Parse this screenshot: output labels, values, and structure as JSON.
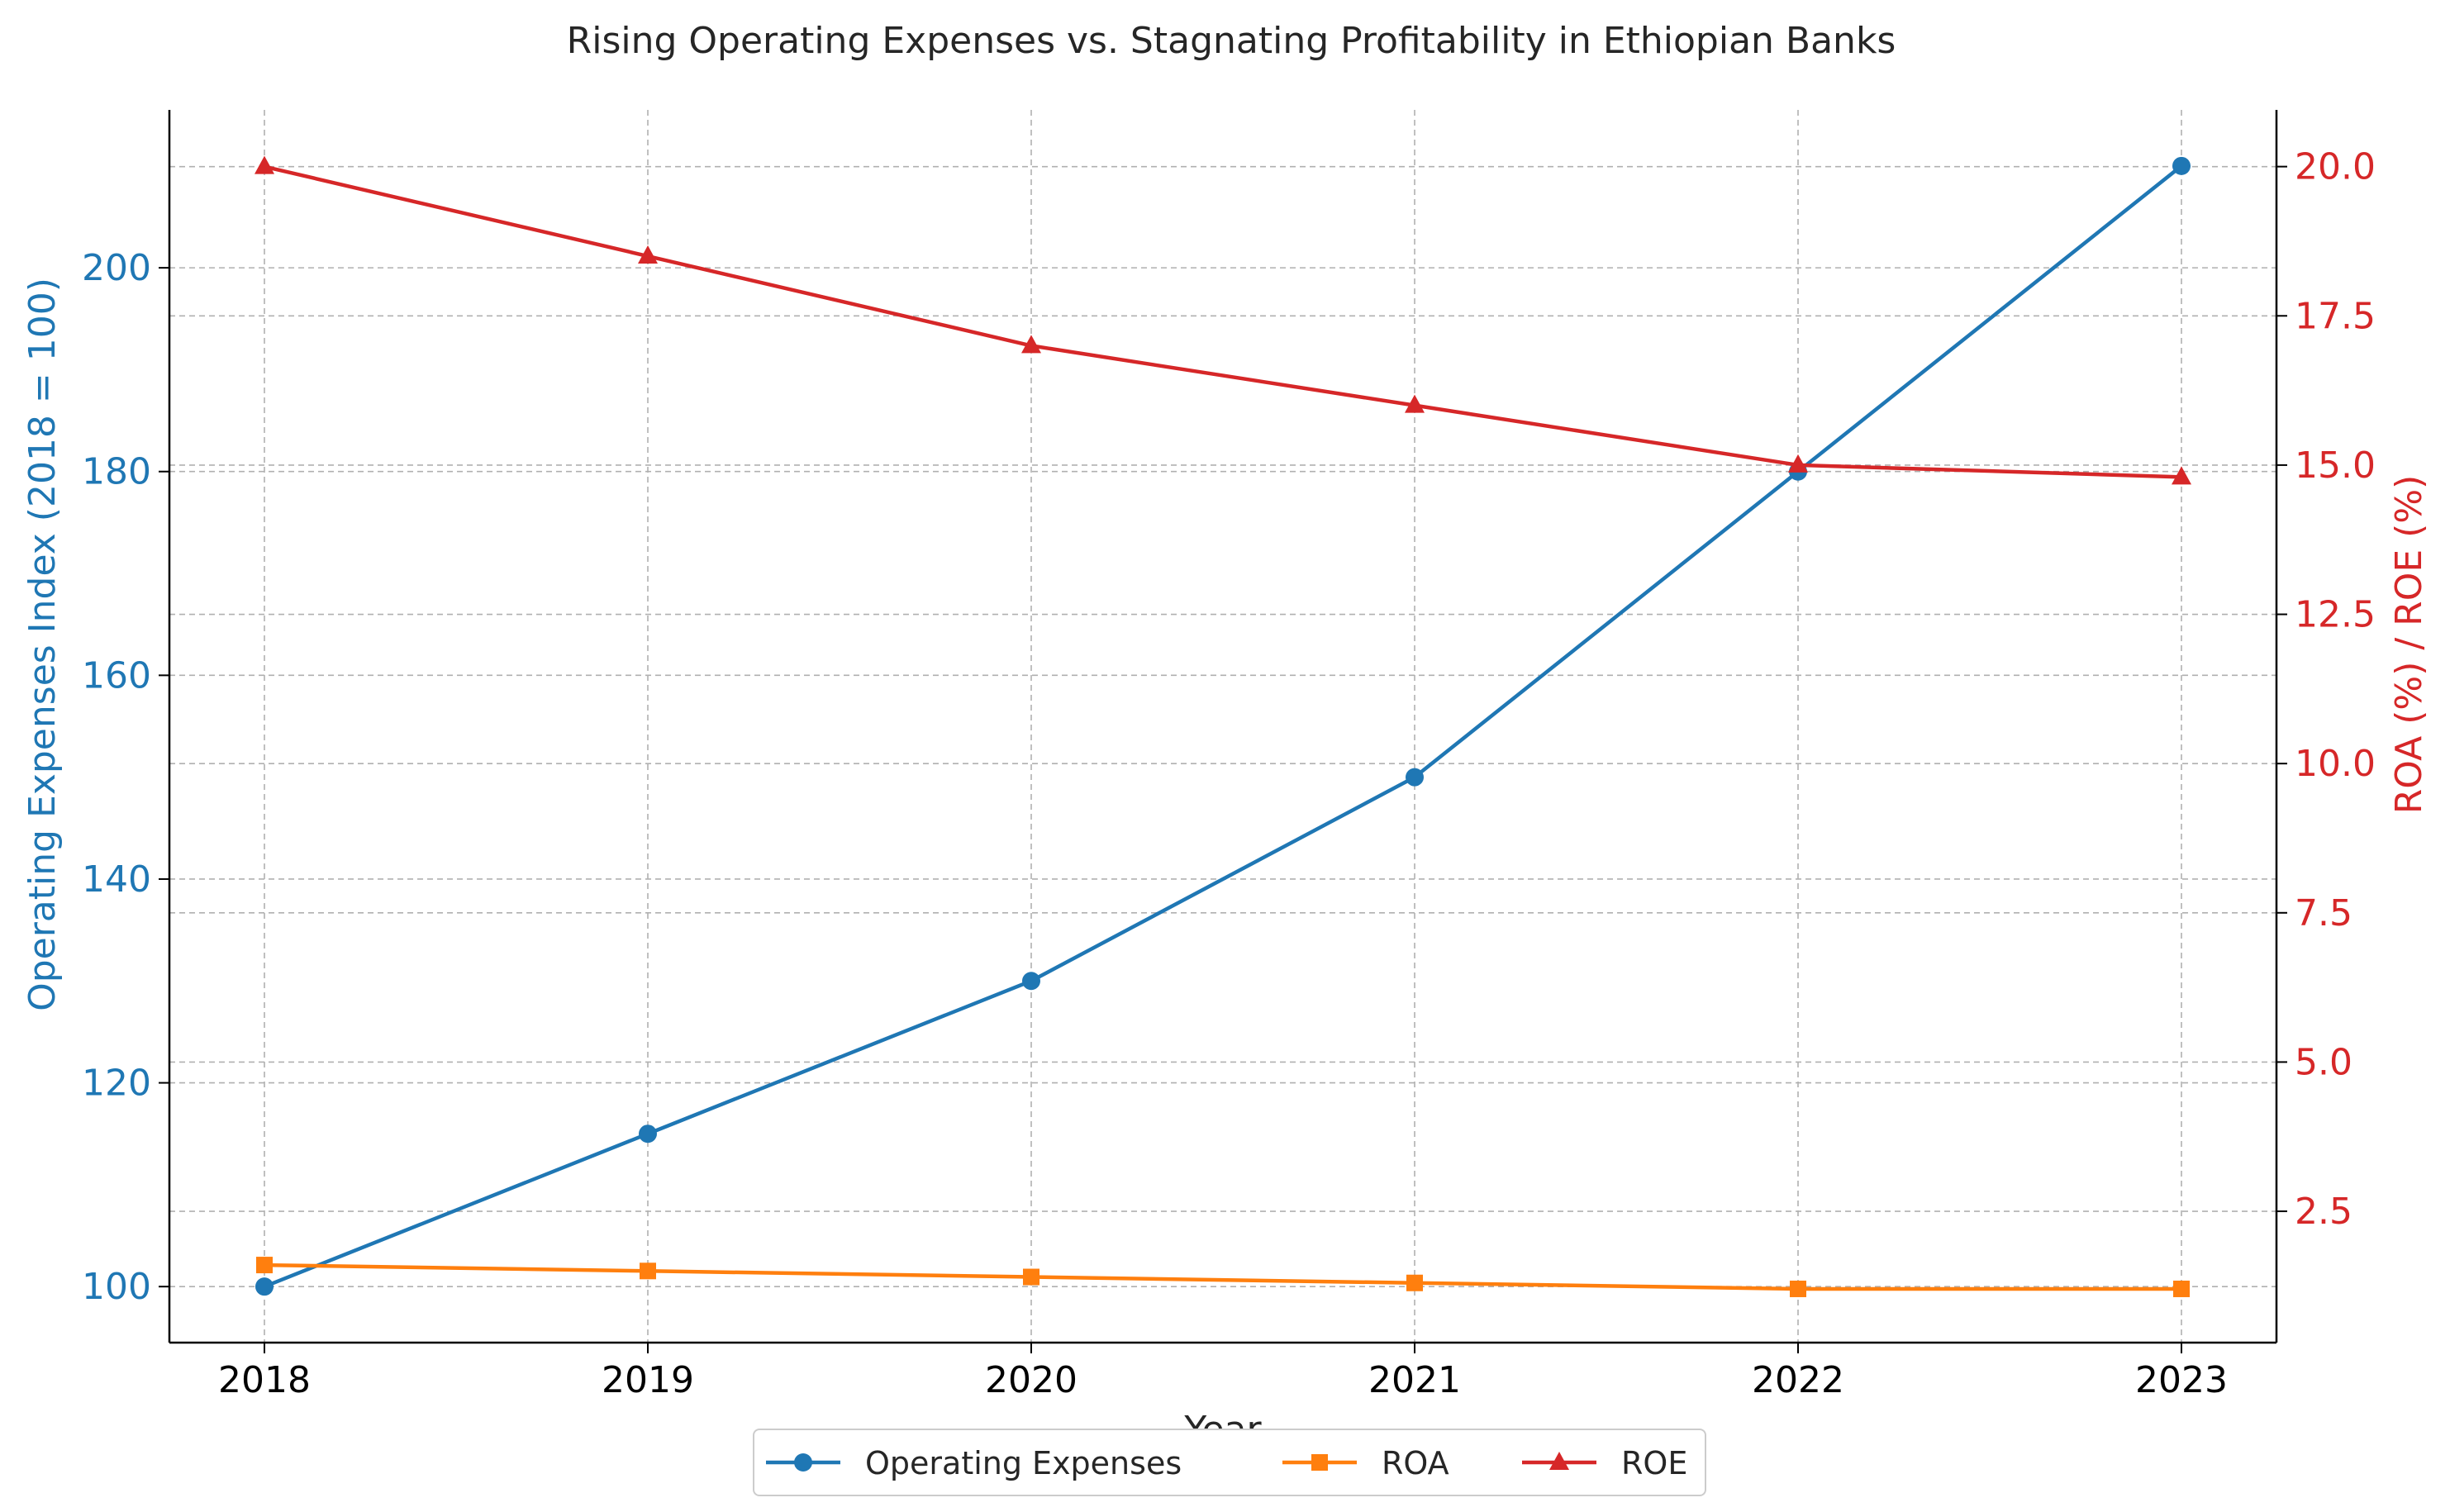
{
  "chart_data": {
    "type": "line",
    "title": "Rising Operating Expenses vs. Stagnating Profitability in Ethiopian Banks",
    "xlabel": "Year",
    "y_left_label": "Operating Expenses Index (2018 = 100)",
    "y_right_label": "ROA (%) / ROE (%)",
    "x": [
      "2018",
      "2019",
      "2020",
      "2021",
      "2022",
      "2023"
    ],
    "y_left_range": [
      94.5,
      215.5
    ],
    "y_right_range": [
      0.3,
      20.95
    ],
    "y_left_ticks": [
      "100",
      "120",
      "140",
      "160",
      "180",
      "200"
    ],
    "y_right_ticks": [
      "2.5",
      "5.0",
      "7.5",
      "10.0",
      "12.5",
      "15.0",
      "17.5",
      "20.0"
    ],
    "grid": true,
    "legend_position": "bottom-center",
    "series": [
      {
        "name": "Operating Expenses",
        "axis": "left",
        "marker": "circle",
        "color": "#1f77b4",
        "values": [
          100,
          115,
          130,
          150,
          180,
          210
        ]
      },
      {
        "name": "ROA",
        "axis": "right",
        "marker": "square",
        "color": "#ff7f0e",
        "values": [
          1.6,
          1.5,
          1.4,
          1.3,
          1.2,
          1.2
        ]
      },
      {
        "name": "ROE",
        "axis": "right",
        "marker": "triangle",
        "color": "#d62728",
        "values": [
          20.0,
          18.5,
          17.0,
          16.0,
          15.0,
          14.8
        ]
      }
    ],
    "colors": {
      "left_axis": "#1f77b4",
      "right_axis": "#d62728"
    }
  }
}
